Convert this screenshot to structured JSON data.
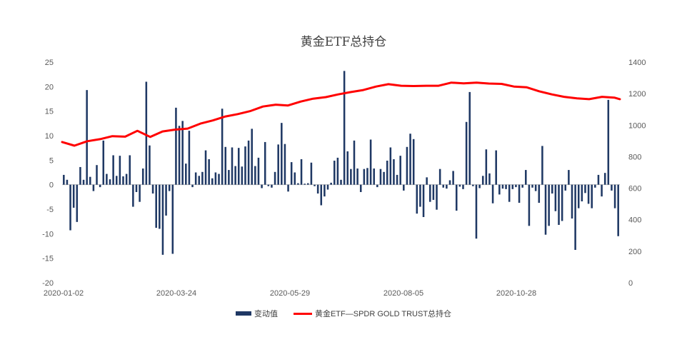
{
  "chart_data": {
    "type": "bar+line",
    "title": "黄金ETF总持仓",
    "colors": {
      "bar": "#1f3864",
      "line": "#ff0000"
    },
    "x_tick_labels": [
      "2020-01-02",
      "2020-03-24",
      "2020-05-29",
      "2020-08-05",
      "2020-10-28"
    ],
    "y_left": {
      "ticks": [
        "25",
        "20",
        "15",
        "10",
        "5",
        "0",
        "-5",
        "-10",
        "-15",
        "-20"
      ],
      "range": [
        -20,
        25
      ]
    },
    "y_right": {
      "ticks": [
        "1400",
        "1200",
        "1000",
        "800",
        "600",
        "400",
        "200",
        "0"
      ],
      "range": [
        0,
        1400
      ]
    },
    "legend": [
      {
        "name": "变动值",
        "kind": "bar"
      },
      {
        "name": "黄金ETF—SPDR GOLD TRUST总持仓",
        "kind": "line"
      }
    ],
    "grid": false,
    "legend_position": "bottom",
    "series": [
      {
        "name": "变动值",
        "type": "bar",
        "axis": "left",
        "values": [
          2,
          1,
          -9.3,
          -4.7,
          -7.6,
          3.6,
          1,
          19.3,
          1.6,
          -1.3,
          4,
          -0.5,
          9,
          2.2,
          1.1,
          6,
          1.8,
          5.9,
          1.7,
          2.2,
          6,
          -4.5,
          -1.5,
          -3.5,
          3.3,
          21,
          8,
          -1.8,
          -8.8,
          -9,
          -14.3,
          -6.3,
          -1.3,
          -14.1,
          15.7,
          12,
          13,
          4.3,
          11,
          -0.5,
          2.5,
          1.8,
          2.6,
          7,
          5.2,
          1.3,
          2.5,
          2.2,
          15.5,
          7.7,
          3,
          7.6,
          3.8,
          7.5,
          3.7,
          7.8,
          9,
          11.4,
          3.8,
          5.5,
          -0.7,
          8.7,
          -0.3,
          -0.6,
          2.6,
          8.2,
          12.6,
          8.3,
          -1.4,
          4.6,
          2.5,
          0.3,
          5.2,
          0.2,
          0.3,
          4.5,
          -0.3,
          -1.8,
          -4.2,
          -2.4,
          -1,
          0.4,
          4.9,
          5.5,
          1,
          23.2,
          6.8,
          3.2,
          9,
          3.3,
          -1.5,
          3.2,
          3.4,
          9.2,
          3.3,
          -0.5,
          3.2,
          2.6,
          4.9,
          7.6,
          5.2,
          2,
          5.9,
          -1.2,
          7.7,
          10.4,
          9.3,
          -5.9,
          -4.5,
          -6.6,
          1.5,
          -3.5,
          -3.1,
          -5.1,
          3.2,
          -0.6,
          -0.8,
          0.9,
          2.8,
          -5.3,
          -0.4,
          -0.9,
          12.8,
          18.9,
          -0.3,
          -11,
          -0.7,
          1.8,
          7.2,
          2.3,
          -3.8,
          7,
          -2,
          -0.8,
          -0.9,
          -3.5,
          -0.9,
          -0.5,
          -3.7,
          -0.6,
          3,
          -8.4,
          -0.6,
          -1.3,
          -3.7,
          7.9,
          -10.2,
          -8.4,
          -1.8,
          -5.4,
          -8.2,
          -7.4,
          -1.2,
          3,
          -6.9,
          -13.3,
          -4.8,
          -3.4,
          -1.7,
          -3.9,
          -4.8,
          -0.6,
          2,
          -2.4,
          2.4,
          17.3,
          -1.2,
          -4.8,
          -10.5
        ]
      },
      {
        "name": "黄金ETF—SPDR GOLD TRUST总持仓",
        "type": "line",
        "axis": "right",
        "x": [
          0,
          0.022,
          0.045,
          0.068,
          0.09,
          0.113,
          0.135,
          0.158,
          0.18,
          0.203,
          0.225,
          0.248,
          0.27,
          0.293,
          0.315,
          0.338,
          0.36,
          0.383,
          0.405,
          0.428,
          0.45,
          0.473,
          0.495,
          0.518,
          0.54,
          0.563,
          0.585,
          0.608,
          0.63,
          0.653,
          0.675,
          0.698,
          0.72,
          0.743,
          0.765,
          0.788,
          0.81,
          0.833,
          0.855,
          0.878,
          0.9,
          0.923,
          0.945,
          0.968,
          0.99,
          1.0
        ],
        "values": [
          893,
          870,
          898,
          911,
          930,
          927,
          964,
          925,
          960,
          972,
          978,
          1010,
          1030,
          1055,
          1070,
          1090,
          1118,
          1130,
          1125,
          1150,
          1168,
          1178,
          1195,
          1210,
          1223,
          1245,
          1260,
          1250,
          1248,
          1250,
          1250,
          1270,
          1265,
          1270,
          1264,
          1262,
          1245,
          1240,
          1215,
          1195,
          1180,
          1170,
          1165,
          1180,
          1175,
          1165
        ]
      }
    ]
  }
}
